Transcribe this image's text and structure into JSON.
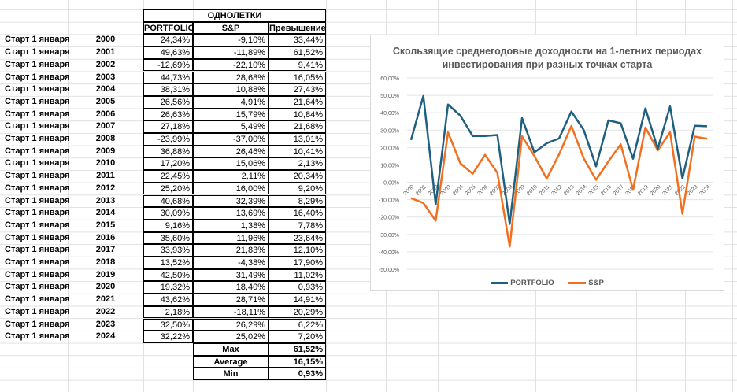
{
  "table": {
    "group_header": "ОДНОЛЕТКИ",
    "col_headers": [
      "PORTFOLIO",
      "S&P",
      "Превышение"
    ],
    "row_label": "Старт 1 января",
    "rows": [
      {
        "year": "2000",
        "portfolio": "24,34%",
        "sp": "-9,10%",
        "excess": "33,44%"
      },
      {
        "year": "2001",
        "portfolio": "49,63%",
        "sp": "-11,89%",
        "excess": "61,52%"
      },
      {
        "year": "2002",
        "portfolio": "-12,69%",
        "sp": "-22,10%",
        "excess": "9,41%"
      },
      {
        "year": "2003",
        "portfolio": "44,73%",
        "sp": "28,68%",
        "excess": "16,05%"
      },
      {
        "year": "2004",
        "portfolio": "38,31%",
        "sp": "10,88%",
        "excess": "27,43%"
      },
      {
        "year": "2005",
        "portfolio": "26,56%",
        "sp": "4,91%",
        "excess": "21,64%"
      },
      {
        "year": "2006",
        "portfolio": "26,63%",
        "sp": "15,79%",
        "excess": "10,84%"
      },
      {
        "year": "2007",
        "portfolio": "27,18%",
        "sp": "5,49%",
        "excess": "21,68%"
      },
      {
        "year": "2008",
        "portfolio": "-23,99%",
        "sp": "-37,00%",
        "excess": "13,01%"
      },
      {
        "year": "2009",
        "portfolio": "36,88%",
        "sp": "26,46%",
        "excess": "10,41%"
      },
      {
        "year": "2010",
        "portfolio": "17,20%",
        "sp": "15,06%",
        "excess": "2,13%"
      },
      {
        "year": "2011",
        "portfolio": "22,45%",
        "sp": "2,11%",
        "excess": "20,34%"
      },
      {
        "year": "2012",
        "portfolio": "25,20%",
        "sp": "16,00%",
        "excess": "9,20%"
      },
      {
        "year": "2013",
        "portfolio": "40,68%",
        "sp": "32,39%",
        "excess": "8,29%"
      },
      {
        "year": "2014",
        "portfolio": "30,09%",
        "sp": "13,69%",
        "excess": "16,40%"
      },
      {
        "year": "2015",
        "portfolio": "9,16%",
        "sp": "1,38%",
        "excess": "7,78%"
      },
      {
        "year": "2016",
        "portfolio": "35,60%",
        "sp": "11,96%",
        "excess": "23,64%"
      },
      {
        "year": "2017",
        "portfolio": "33,93%",
        "sp": "21,83%",
        "excess": "12,10%"
      },
      {
        "year": "2018",
        "portfolio": "13,52%",
        "sp": "-4,38%",
        "excess": "17,90%"
      },
      {
        "year": "2019",
        "portfolio": "42,50%",
        "sp": "31,49%",
        "excess": "11,02%"
      },
      {
        "year": "2020",
        "portfolio": "19,32%",
        "sp": "18,40%",
        "excess": "0,93%"
      },
      {
        "year": "2021",
        "portfolio": "43,62%",
        "sp": "28,71%",
        "excess": "14,91%"
      },
      {
        "year": "2022",
        "portfolio": "2,18%",
        "sp": "-18,11%",
        "excess": "20,29%"
      },
      {
        "year": "2023",
        "portfolio": "32,50%",
        "sp": "26,29%",
        "excess": "6,22%"
      },
      {
        "year": "2024",
        "portfolio": "32,22%",
        "sp": "25,02%",
        "excess": "7,20%"
      }
    ],
    "summary": [
      {
        "label": "Max",
        "value": "61,52%"
      },
      {
        "label": "Average",
        "value": "16,15%"
      },
      {
        "label": "Min",
        "value": "0,93%"
      }
    ]
  },
  "chart_data": {
    "type": "line",
    "title": "Скользящие среднегодовые доходности на 1-летних периодах инвестирования при разных точках старта",
    "x": [
      "2000",
      "2001",
      "2002",
      "2003",
      "2004",
      "2005",
      "2006",
      "2007",
      "2008",
      "2009",
      "2010",
      "2011",
      "2012",
      "2013",
      "2014",
      "2015",
      "2016",
      "2017",
      "2018",
      "2019",
      "2020",
      "2021",
      "2022",
      "2023",
      "2024"
    ],
    "series": [
      {
        "name": "PORTFOLIO",
        "color": "#1f5f7f",
        "values": [
          24.34,
          49.63,
          -12.69,
          44.73,
          38.31,
          26.56,
          26.63,
          27.18,
          -23.99,
          36.88,
          17.2,
          22.45,
          25.2,
          40.68,
          30.09,
          9.16,
          35.6,
          33.93,
          13.52,
          42.5,
          19.32,
          43.62,
          2.18,
          32.5,
          32.22
        ]
      },
      {
        "name": "S&P",
        "color": "#f07020",
        "values": [
          -9.1,
          -11.89,
          -22.1,
          28.68,
          10.88,
          4.91,
          15.79,
          5.49,
          -37.0,
          26.46,
          15.06,
          2.11,
          16.0,
          32.39,
          13.69,
          1.38,
          11.96,
          21.83,
          -4.38,
          31.49,
          18.4,
          28.71,
          -18.11,
          26.29,
          25.02
        ]
      }
    ],
    "ylim": [
      -50,
      60
    ],
    "yticks": [
      "60,00%",
      "50,00%",
      "40,00%",
      "30,00%",
      "20,00%",
      "10,00%",
      "0,00%",
      "-10,00%",
      "-20,00%",
      "-30,00%",
      "-40,00%",
      "-50,00%"
    ],
    "legend": "bottom",
    "grid": true
  }
}
